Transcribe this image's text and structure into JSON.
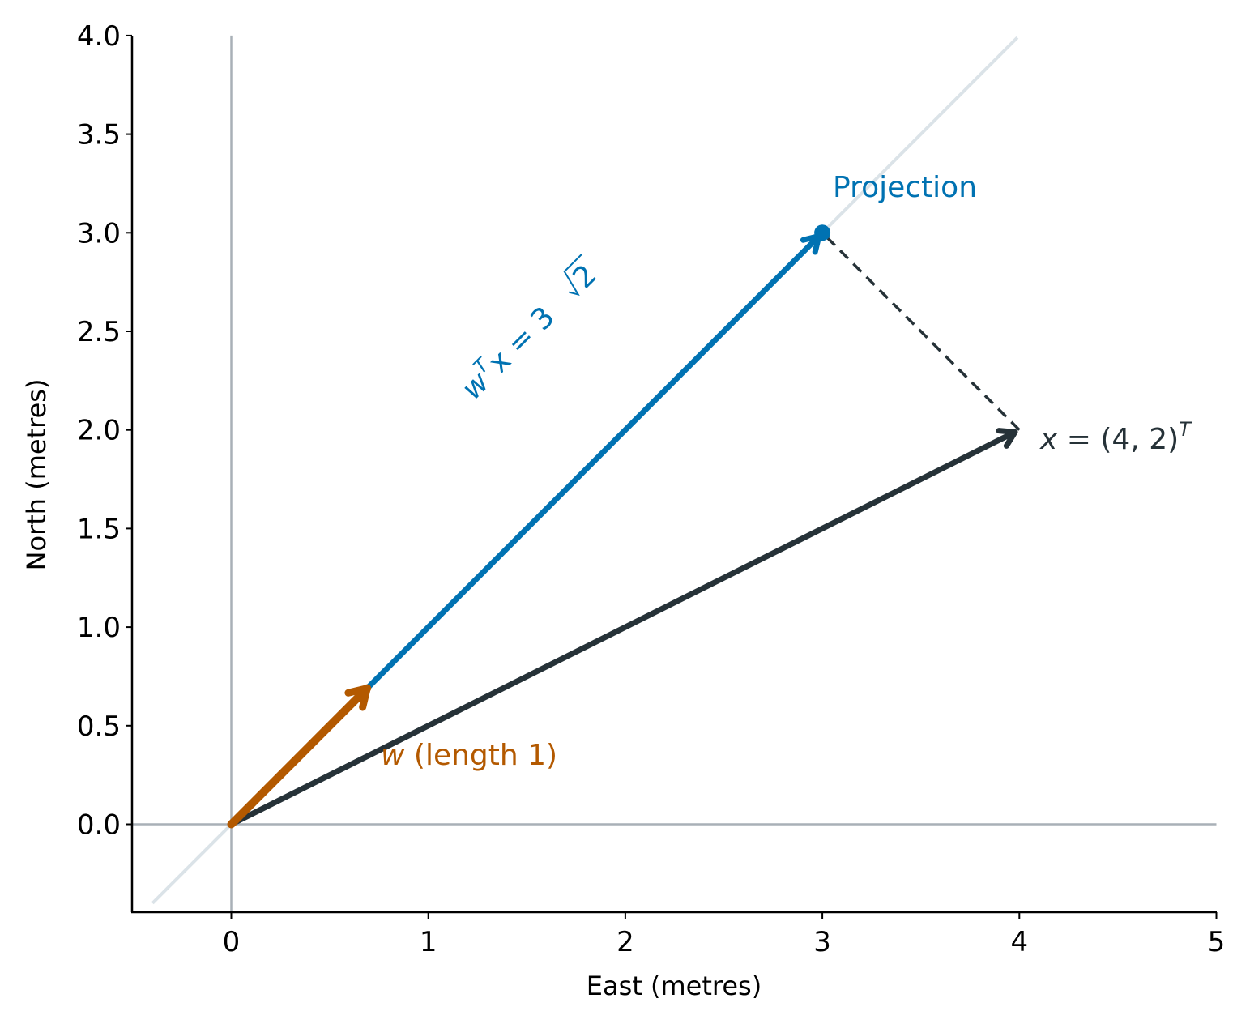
{
  "chart_data": {
    "type": "line",
    "xlabel": "East (metres)",
    "ylabel": "North (metres)",
    "xlim": [
      -0.5,
      5
    ],
    "ylim": [
      -0.45,
      4.0
    ],
    "xticks": [
      0,
      1,
      2,
      3,
      4,
      5
    ],
    "xtick_labels": [
      "0",
      "1",
      "2",
      "3",
      "4",
      "5"
    ],
    "yticks": [
      0.0,
      0.5,
      1.0,
      1.5,
      2.0,
      2.5,
      3.0,
      3.5,
      4.0
    ],
    "ytick_labels": [
      "0.0",
      "0.5",
      "1.0",
      "1.5",
      "2.0",
      "2.5",
      "3.0",
      "3.5",
      "4.0"
    ],
    "grid": false,
    "reference_lines": {
      "horizontal_y": 0,
      "vertical_x": 0,
      "line_y_equals_x": {
        "from": [
          -0.4,
          -0.4
        ],
        "to": [
          3.99,
          3.99
        ]
      }
    },
    "vectors": [
      {
        "id": "x",
        "from": [
          0,
          0
        ],
        "to": [
          4,
          2
        ],
        "color": "#263238"
      },
      {
        "id": "projection",
        "from": [
          0,
          0
        ],
        "to": [
          3,
          3
        ],
        "color": "#0072b2"
      },
      {
        "id": "w",
        "from": [
          0,
          0
        ],
        "to": [
          0.7071,
          0.7071
        ],
        "color": "#b35900"
      }
    ],
    "projection_point": {
      "x": 3,
      "y": 3,
      "color": "#0072b2"
    },
    "dashed_segment": {
      "from": [
        4,
        2
      ],
      "to": [
        3,
        3
      ],
      "color": "#263238"
    },
    "annotations": {
      "projection_label": {
        "text": "Projection",
        "color": "#0072b2"
      },
      "w_label": {
        "symbol": "w",
        "text": " (length 1)",
        "color": "#b35900"
      },
      "x_label": {
        "lhs": "x",
        "rhs": " = (4, 2)",
        "sup": "T",
        "color": "#263238"
      },
      "dot_label": {
        "w": "w",
        "sup": "T",
        "x": "x",
        "rhs": " = 3",
        "radicand": "2",
        "color": "#0072b2"
      }
    }
  },
  "colors": {
    "reference_line": "#a9b0b7",
    "diagonal_line": "#dbe3e8",
    "spine": "#000000"
  }
}
